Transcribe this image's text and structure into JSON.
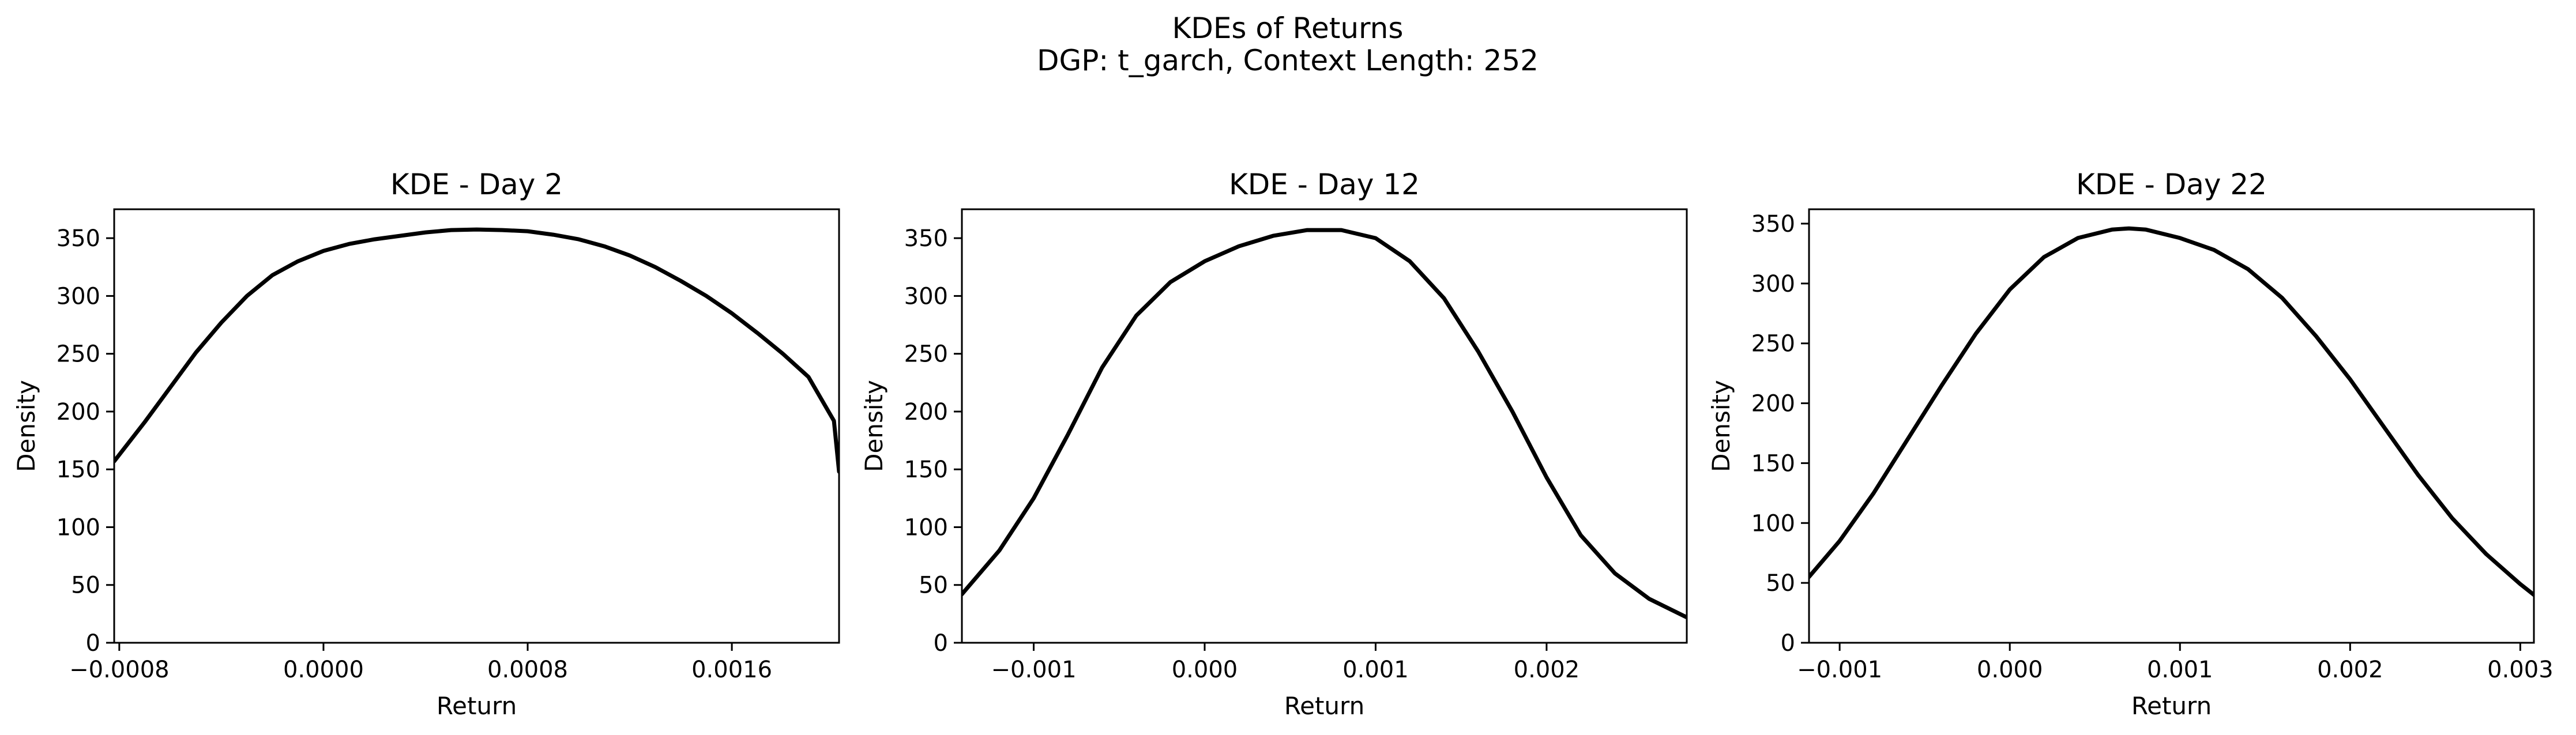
{
  "figure": {
    "suptitle_line1": "KDEs of Returns",
    "suptitle_line2": "DGP: t_garch, Context Length: 252"
  },
  "chart_data": [
    {
      "type": "line",
      "title": "KDE - Day 2",
      "xlabel": "Return",
      "ylabel": "Density",
      "xlim": [
        -0.00082,
        0.00202
      ],
      "ylim": [
        0,
        375
      ],
      "xticks": [
        -0.0008,
        0.0,
        0.0008,
        0.0016
      ],
      "xtick_labels": [
        "−0.0008",
        "0.0000",
        "0.0008",
        "0.0016"
      ],
      "yticks": [
        0,
        50,
        100,
        150,
        200,
        250,
        300,
        350
      ],
      "ytick_labels": [
        "0",
        "50",
        "100",
        "150",
        "200",
        "250",
        "300",
        "350"
      ],
      "series": [
        {
          "color": "#000000",
          "x": [
            -0.00082,
            -0.0007,
            -0.0006,
            -0.0005,
            -0.0004,
            -0.0003,
            -0.0002,
            -0.0001,
            0.0,
            0.0001,
            0.0002,
            0.0003,
            0.0004,
            0.0005,
            0.0006,
            0.0007,
            0.0008,
            0.0009,
            0.001,
            0.0011,
            0.0012,
            0.0013,
            0.0014,
            0.0015,
            0.0016,
            0.0017,
            0.0018,
            0.0019,
            0.002,
            0.00202
          ],
          "y": [
            157,
            191,
            221,
            251,
            277,
            300,
            318,
            330,
            339,
            345,
            349,
            352,
            355,
            357,
            357.5,
            357,
            356,
            353,
            349,
            343,
            335,
            325,
            313,
            300,
            285,
            268,
            250,
            230,
            192,
            148
          ]
        }
      ]
    },
    {
      "type": "line",
      "title": "KDE - Day 12",
      "xlabel": "Return",
      "ylabel": "Density",
      "xlim": [
        -0.00142,
        0.00282
      ],
      "ylim": [
        0,
        375
      ],
      "xticks": [
        -0.001,
        0.0,
        0.001,
        0.002
      ],
      "xtick_labels": [
        "−0.001",
        "0.000",
        "0.001",
        "0.002"
      ],
      "yticks": [
        0,
        50,
        100,
        150,
        200,
        250,
        300,
        350
      ],
      "ytick_labels": [
        "0",
        "50",
        "100",
        "150",
        "200",
        "250",
        "300",
        "350"
      ],
      "series": [
        {
          "color": "#000000",
          "x": [
            -0.00142,
            -0.0012,
            -0.001,
            -0.0008,
            -0.0006,
            -0.0004,
            -0.0002,
            0.0,
            0.0002,
            0.0004,
            0.0006,
            0.0008,
            0.001,
            0.0012,
            0.0014,
            0.0016,
            0.0018,
            0.002,
            0.0022,
            0.0024,
            0.0026,
            0.00282
          ],
          "y": [
            42,
            80,
            125,
            180,
            238,
            283,
            312,
            330,
            343,
            352,
            357,
            357,
            350,
            330,
            298,
            252,
            200,
            143,
            93,
            60,
            38,
            22
          ]
        }
      ]
    },
    {
      "type": "line",
      "title": "KDE - Day 22",
      "xlabel": "Return",
      "ylabel": "Density",
      "xlim": [
        -0.00118,
        0.00308
      ],
      "ylim": [
        0,
        362
      ],
      "xticks": [
        -0.001,
        0.0,
        0.001,
        0.002,
        0.003
      ],
      "xtick_labels": [
        "−0.001",
        "0.000",
        "0.001",
        "0.002",
        "0.003"
      ],
      "yticks": [
        0,
        50,
        100,
        150,
        200,
        250,
        300,
        350
      ],
      "ytick_labels": [
        "0",
        "50",
        "100",
        "150",
        "200",
        "250",
        "300",
        "350"
      ],
      "series": [
        {
          "color": "#000000",
          "x": [
            -0.00118,
            -0.001,
            -0.0008,
            -0.0006,
            -0.0004,
            -0.0002,
            0.0,
            0.0002,
            0.0004,
            0.0006,
            0.0007,
            0.0008,
            0.001,
            0.0012,
            0.0014,
            0.0016,
            0.0018,
            0.002,
            0.0022,
            0.0024,
            0.0026,
            0.0028,
            0.003,
            0.00308
          ],
          "y": [
            55,
            85,
            125,
            170,
            215,
            258,
            295,
            322,
            338,
            345,
            346,
            345,
            338,
            328,
            312,
            288,
            256,
            220,
            180,
            140,
            104,
            74,
            49,
            40
          ]
        }
      ]
    }
  ]
}
